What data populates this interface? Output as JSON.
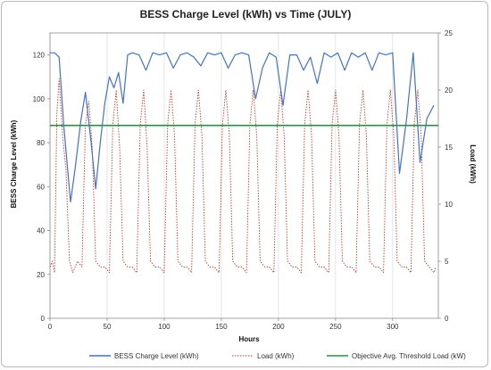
{
  "chart_data": {
    "type": "line",
    "title": "BESS Charge Level (kWh) vs Time (JULY)",
    "xlabel": "Hours",
    "ylabel_left": "BESS Charge Level (kWh)",
    "ylabel_right": "Load (kWh)",
    "xlim": [
      0,
      340
    ],
    "ylim_left": [
      0,
      130
    ],
    "ylim_right": [
      0,
      25
    ],
    "xticks": [
      "0",
      "50",
      "100",
      "150",
      "200",
      "250",
      "300"
    ],
    "xtick_values": [
      0,
      50,
      100,
      150,
      200,
      250,
      300
    ],
    "yticks_left": [
      "0",
      "20",
      "40",
      "60",
      "80",
      "100",
      "120"
    ],
    "ytick_left_values": [
      0,
      20,
      40,
      60,
      80,
      100,
      120
    ],
    "yticks_right": [
      "0",
      "5",
      "10",
      "15",
      "20",
      "25"
    ],
    "ytick_right_values": [
      0,
      5,
      10,
      15,
      20,
      25
    ],
    "grid": "vertical",
    "legend_position": "bottom",
    "series": [
      {
        "name": "BESS Charge Level (kWh)",
        "axis": "left",
        "color": "#4472c4",
        "style": "solid",
        "x": [
          0,
          4,
          8,
          12,
          18,
          22,
          27,
          31,
          36,
          40,
          44,
          48,
          52,
          56,
          60,
          64,
          68,
          72,
          78,
          84,
          90,
          96,
          102,
          108,
          114,
          120,
          126,
          132,
          138,
          144,
          150,
          156,
          162,
          168,
          174,
          180,
          186,
          192,
          198,
          204,
          210,
          216,
          222,
          228,
          234,
          240,
          246,
          252,
          258,
          264,
          270,
          276,
          282,
          288,
          294,
          300,
          306,
          312,
          318,
          324,
          330,
          336
        ],
        "y": [
          121,
          121,
          119,
          88,
          53,
          68,
          90,
          103,
          80,
          59,
          80,
          98,
          110,
          105,
          112,
          98,
          120,
          121,
          120,
          113,
          121,
          120,
          121,
          114,
          120,
          121,
          119,
          115,
          121,
          120,
          121,
          114,
          120,
          121,
          120,
          100,
          114,
          121,
          119,
          97,
          120,
          120,
          113,
          119,
          107,
          121,
          119,
          121,
          113,
          121,
          119,
          121,
          113,
          121,
          120,
          121,
          66,
          90,
          121,
          71,
          91,
          97
        ]
      },
      {
        "name": "Load (kWh)",
        "axis": "right",
        "color": "#c0392b",
        "style": "dotted",
        "x": [
          0,
          2,
          4,
          6,
          8,
          11,
          14,
          17,
          20,
          24,
          28,
          31,
          34,
          37,
          40,
          44,
          48,
          52,
          55,
          58,
          61,
          64,
          68,
          72,
          76,
          79,
          82,
          85,
          88,
          92,
          96,
          100,
          103,
          106,
          109,
          112,
          116,
          120,
          124,
          127,
          130,
          133,
          136,
          140,
          144,
          148,
          151,
          154,
          157,
          160,
          164,
          168,
          172,
          175,
          178,
          181,
          184,
          188,
          192,
          196,
          199,
          202,
          205,
          208,
          212,
          216,
          220,
          223,
          226,
          229,
          232,
          236,
          240,
          244,
          247,
          250,
          253,
          256,
          260,
          264,
          268,
          271,
          274,
          277,
          280,
          284,
          288,
          292,
          295,
          298,
          301,
          304,
          308,
          312,
          316,
          319,
          322,
          325,
          328,
          332,
          336,
          338
        ],
        "y": [
          4.5,
          5,
          4,
          18,
          21,
          16,
          13,
          5,
          4,
          5,
          4.5,
          17,
          19,
          15,
          5,
          4.5,
          4.5,
          4,
          17,
          20,
          15,
          5,
          4.5,
          4.5,
          4,
          17,
          20,
          15,
          5,
          4.5,
          4.5,
          4,
          17,
          20,
          16,
          5,
          4.5,
          4.5,
          4,
          17,
          20,
          16,
          5,
          4.5,
          4.5,
          4,
          17,
          20,
          16,
          5,
          4.5,
          4.5,
          4,
          17,
          20,
          16,
          5,
          4.5,
          4.5,
          4,
          17,
          20,
          16,
          5,
          4.5,
          4.5,
          4,
          17,
          20,
          16,
          5,
          4.5,
          4.5,
          4,
          17,
          20,
          16,
          5,
          4.5,
          4.5,
          4,
          17,
          20,
          16,
          5,
          4.5,
          4.5,
          4,
          17,
          20,
          16,
          5,
          4.5,
          4.5,
          4,
          17,
          20,
          16,
          5,
          4.5,
          4,
          4.5
        ]
      },
      {
        "name": "Objective Avg. Threshold Load (kW)",
        "axis": "right",
        "color": "#1a9641",
        "style": "solid",
        "x": [
          0,
          340
        ],
        "y": [
          16.9,
          16.9
        ]
      }
    ]
  }
}
